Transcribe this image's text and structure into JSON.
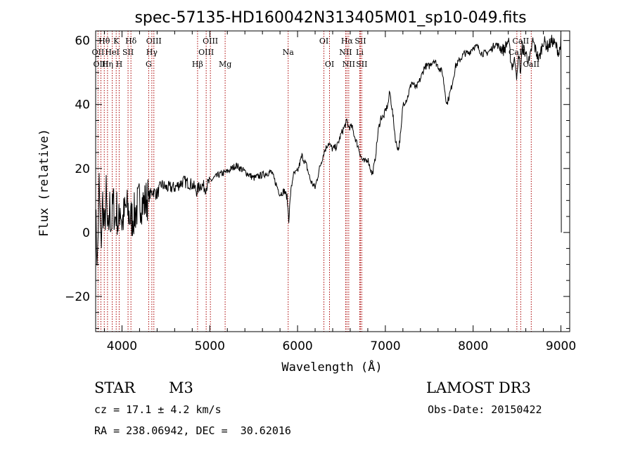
{
  "chart_data": {
    "type": "line",
    "title": "spec-57135-HD160042N313405M01_sp10-049.fits",
    "xlabel": "Wavelength (Å)",
    "ylabel": "Flux (relative)",
    "xlim": [
      3700,
      9100
    ],
    "ylim": [
      -31,
      63
    ],
    "x_ticks": [
      4000,
      5000,
      6000,
      7000,
      8000,
      9000
    ],
    "y_ticks": [
      -20,
      0,
      20,
      40,
      60
    ],
    "x_minor_step": 200,
    "y_minor_step": 5,
    "spectrum": {
      "name": "flux",
      "x": [
        3700,
        3720,
        3740,
        3760,
        3780,
        3800,
        3820,
        3840,
        3860,
        3880,
        3900,
        3920,
        3940,
        3960,
        3980,
        4000,
        4050,
        4100,
        4150,
        4200,
        4250,
        4300,
        4350,
        4400,
        4450,
        4500,
        4600,
        4700,
        4800,
        4850,
        4900,
        4950,
        5000,
        5100,
        5200,
        5300,
        5400,
        5500,
        5600,
        5700,
        5800,
        5850,
        5880,
        5900,
        5920,
        5950,
        6000,
        6050,
        6100,
        6150,
        6200,
        6250,
        6300,
        6350,
        6400,
        6450,
        6500,
        6550,
        6563,
        6580,
        6620,
        6650,
        6700,
        6730,
        6760,
        6800,
        6850,
        6880,
        6920,
        6950,
        6980,
        7000,
        7030,
        7050,
        7080,
        7100,
        7120,
        7150,
        7180,
        7200,
        7250,
        7300,
        7350,
        7400,
        7450,
        7500,
        7550,
        7600,
        7650,
        7680,
        7700,
        7750,
        7800,
        7850,
        7900,
        7950,
        8000,
        8050,
        8100,
        8150,
        8200,
        8250,
        8300,
        8350,
        8400,
        8440,
        8480,
        8500,
        8520,
        8540,
        8560,
        8600,
        8640,
        8680,
        8700,
        8750,
        8800,
        8850,
        8900,
        8950,
        8980,
        9000,
        9005
      ],
      "y": [
        5,
        -10,
        15,
        -5,
        10,
        0,
        12,
        -3,
        8,
        2,
        10,
        4,
        7,
        1,
        9,
        3,
        8,
        4,
        6,
        10,
        9,
        11,
        13,
        12,
        15,
        14,
        14,
        16,
        15,
        13,
        15,
        14,
        16,
        18,
        19,
        21,
        19,
        17,
        18,
        19,
        12,
        13,
        11,
        4,
        12,
        18,
        19,
        24,
        21,
        16,
        14,
        20,
        25,
        28,
        26,
        27,
        31,
        34,
        35,
        33,
        33,
        30,
        26,
        23,
        22,
        23,
        18,
        22,
        32,
        36,
        36,
        38,
        40,
        44,
        38,
        33,
        28,
        26,
        32,
        40,
        42,
        47,
        45,
        48,
        52,
        52,
        54,
        52,
        50,
        44,
        40,
        45,
        52,
        54,
        56,
        56,
        58,
        58,
        56,
        56,
        57,
        59,
        58,
        57,
        60,
        52,
        54,
        48,
        56,
        50,
        58,
        56,
        53,
        60,
        58,
        54,
        60,
        58,
        60,
        58,
        56,
        60,
        0
      ]
    },
    "lines": [
      {
        "label": "Hθ",
        "x": 3798,
        "row": 1
      },
      {
        "label": "OII",
        "x": 3727,
        "row": 2
      },
      {
        "label": "OIII",
        "x": 3760,
        "row": 3
      },
      {
        "label": "K",
        "x": 3934,
        "row": 1
      },
      {
        "label": "HeI",
        "x": 3889,
        "row": 2
      },
      {
        "label": "SII",
        "x": 4069,
        "row": 2
      },
      {
        "label": "Hη",
        "x": 3835,
        "row": 3
      },
      {
        "label": "H",
        "x": 3968,
        "row": 3
      },
      {
        "label": "Hδ",
        "x": 4102,
        "row": 1
      },
      {
        "label": "OIII",
        "x": 4363,
        "row": 1
      },
      {
        "label": "Hγ",
        "x": 4340,
        "row": 2
      },
      {
        "label": "G",
        "x": 4304,
        "row": 3
      },
      {
        "label": "OIII",
        "x": 5007,
        "row": 1
      },
      {
        "label": "OIII",
        "x": 4959,
        "row": 2
      },
      {
        "label": "Hβ",
        "x": 4861,
        "row": 3
      },
      {
        "label": "Mg",
        "x": 5175,
        "row": 3
      },
      {
        "label": "Na",
        "x": 5893,
        "row": 2
      },
      {
        "label": "OI",
        "x": 6300,
        "row": 1
      },
      {
        "label": "OI",
        "x": 6364,
        "row": 3
      },
      {
        "label": "Hα",
        "x": 6563,
        "row": 1
      },
      {
        "label": "SII",
        "x": 6716,
        "row": 1
      },
      {
        "label": "NII",
        "x": 6548,
        "row": 2
      },
      {
        "label": "Li",
        "x": 6708,
        "row": 2
      },
      {
        "label": "NII",
        "x": 6583,
        "row": 3
      },
      {
        "label": "SII",
        "x": 6731,
        "row": 3
      },
      {
        "label": "CaII",
        "x": 8542,
        "row": 1
      },
      {
        "label": "CaII",
        "x": 8498,
        "row": 2
      },
      {
        "label": "CaII",
        "x": 8662,
        "row": 3
      }
    ]
  },
  "info": {
    "class_label": "STAR",
    "subclass": "M3",
    "survey": "LAMOST DR3",
    "cz": "cz = 17.1 ± 4.2 km/s",
    "obs_date": "Obs-Date: 20150422",
    "coords": "RA = 238.06942, DEC =  30.62016"
  },
  "colors": {
    "spectrum": "#000000",
    "line_markers": "#aa0000",
    "background": "#ffffff"
  }
}
